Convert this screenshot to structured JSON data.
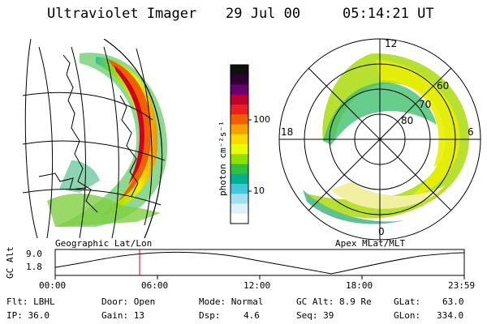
{
  "header": {
    "instrument": "Ultraviolet Imager",
    "date": "29 Jul 00",
    "time": "05:14:21 UT"
  },
  "colorbar": {
    "unit_label": "photon cm⁻²s⁻¹",
    "ticks": [
      "100",
      "10"
    ],
    "colors": [
      "#101010",
      "#300030",
      "#6a0070",
      "#c0002a",
      "#e82020",
      "#f06000",
      "#f8a000",
      "#ffd800",
      "#e8ff00",
      "#90e000",
      "#30c040",
      "#00b090",
      "#40c8d8",
      "#a0e0f0",
      "#e0f0f8",
      "#ffffff"
    ]
  },
  "geo_panel": {
    "label": "Geographic Lat/Lon"
  },
  "polar_panel": {
    "label": "Apex MLat/MLT",
    "mlt_labels": {
      "top": "12",
      "bottom": "0",
      "left": "18",
      "right": "6"
    },
    "lat_labels": [
      "60",
      "70",
      "80"
    ]
  },
  "altitude_plot": {
    "axis_label": "GC Alt",
    "y_ticks": [
      "9.0",
      "1.8"
    ],
    "x_ticks": [
      "00:00",
      "06:00",
      "12:00",
      "18:00",
      "23:59"
    ]
  },
  "info": {
    "filter": "Flt: LBHL",
    "ip": "IP: 36.0",
    "door": "Door: Open",
    "gain": "Gain: 13",
    "mode": "Mode: Normal",
    "dsp_label": "Dsp:",
    "dsp_value": "4.6",
    "gc_alt": "GC Alt: 8.9 Re",
    "seq": "Seq: 39",
    "glat_label": "GLat:",
    "glat_value": "63.0",
    "glon_label": "GLon:",
    "glon_value": "334.0"
  }
}
